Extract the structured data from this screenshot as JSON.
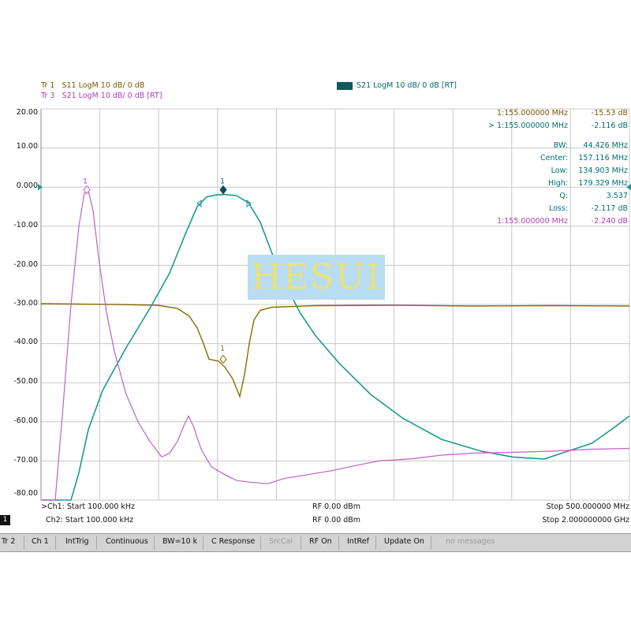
{
  "traces": {
    "tr1_label": "Tr 1",
    "tr1_desc": "S11 LogM 10 dB/ 0 dB",
    "tr3_label": "Tr 3",
    "tr3_desc": "S21 LogM 10 dB/ 0 dB [RT]",
    "tr2_desc": "S21 LogM 10 dB/ 0 dB [RT]"
  },
  "y_axis": {
    "labels": [
      "20.00",
      "10.00",
      "0.000",
      "-10.00",
      "-20.00",
      "-30.00",
      "-40.00",
      "-50.00",
      "-60.00",
      "-70.00",
      "-80.00"
    ]
  },
  "readouts": {
    "marker_s11": {
      "label": "1:155.000000 MHz",
      "value": "-15.53 dB"
    },
    "marker_s21": {
      "label": "> 1:155.000000 MHz",
      "value": "-2.116 dB"
    },
    "bw": {
      "label": "BW:",
      "value": "44.426 MHz"
    },
    "center": {
      "label": "Center:",
      "value": "157.116 MHz"
    },
    "low": {
      "label": "Low:",
      "value": "134.903 MHz"
    },
    "high": {
      "label": "High:",
      "value": "179.329 MHz"
    },
    "q": {
      "label": "Q:",
      "value": "3.537"
    },
    "loss": {
      "label": "Loss:",
      "value": "-2.117 dB"
    },
    "marker_s21b": {
      "label": "1:155.000000 MHz",
      "value": "-2.240 dB"
    }
  },
  "markers": {
    "m1": "1",
    "m2": "1",
    "m3": "1"
  },
  "bottom": {
    "ch1_start": ">Ch1: Start 100.000 kHz",
    "ch1_rf": "RF 0.00 dBm",
    "ch1_stop": "Stop 500.000000 MHz",
    "ch2_start": "Ch2: Start 100.000 kHz",
    "ch2_rf": "RF 0.00 dBm",
    "ch2_stop": "Stop 2.000000000 GHz",
    "badge": "1"
  },
  "status": {
    "tr": "Tr 2",
    "ch": "Ch 1",
    "trig": "IntTrig",
    "mode": "Continuous",
    "bw": "BW=10 k",
    "cal": "C Response",
    "srccal": "SrcCal",
    "rf": "RF On",
    "ref": "IntRef",
    "update": "Update On",
    "msg": "no messages"
  },
  "watermark": "HESUI",
  "colors": {
    "s11": "#8a6a00",
    "s21": "#1a9a96",
    "s21_ch2": "#c060c8",
    "grid": "#c8c8c8",
    "statusbar": "#d3d3d3"
  }
}
